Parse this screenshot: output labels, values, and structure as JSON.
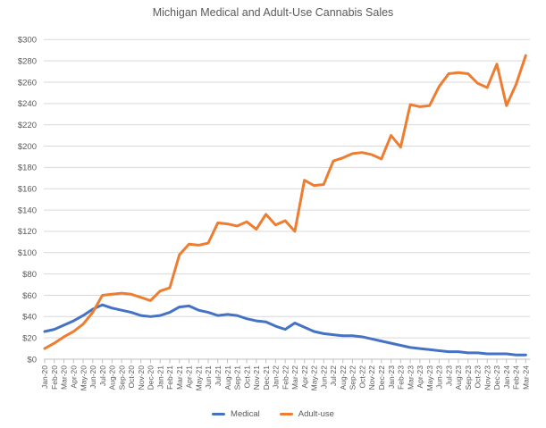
{
  "chart_data": {
    "type": "line",
    "title": "Michigan Medical and Adult-Use Cannabis Sales",
    "categories": [
      "Jan-20",
      "Feb-20",
      "Mar-20",
      "Apr-20",
      "May-20",
      "Jun-20",
      "Jul-20",
      "Aug-20",
      "Sep-20",
      "Oct-20",
      "Nov-20",
      "Dec-20",
      "Jan-21",
      "Feb-21",
      "Mar-21",
      "Apr-21",
      "May-21",
      "Jun-21",
      "Jul-21",
      "Aug-21",
      "Sep-21",
      "Oct-21",
      "Nov-21",
      "Dec-21",
      "Jan-22",
      "Feb-22",
      "Mar-22",
      "Apr-22",
      "May-22",
      "Jun-22",
      "Jul-22",
      "Aug-22",
      "Sep-22",
      "Oct-22",
      "Nov-22",
      "Dec-22",
      "Jan-23",
      "Feb-23",
      "Mar-23",
      "Apr-23",
      "May-23",
      "Jun-23",
      "Jul-23",
      "Aug-23",
      "Sep-23",
      "Oct-23",
      "Nov-23",
      "Dec-23",
      "Jan-24",
      "Feb-24",
      "Mar-24"
    ],
    "series": [
      {
        "name": "Medical",
        "color": "#4472C4",
        "values": [
          26,
          28,
          32,
          36,
          41,
          47,
          51,
          48,
          46,
          44,
          41,
          40,
          41,
          44,
          49,
          50,
          46,
          44,
          41,
          42,
          41,
          38,
          36,
          35,
          31,
          28,
          34,
          30,
          26,
          24,
          23,
          22,
          22,
          21,
          19,
          17,
          15,
          13,
          11,
          10,
          9,
          8,
          7,
          7,
          6,
          6,
          5,
          5,
          5,
          4,
          4
        ]
      },
      {
        "name": "Adult-use",
        "color": "#ED7D31",
        "values": [
          10,
          15,
          21,
          26,
          33,
          44,
          60,
          61,
          62,
          61,
          58,
          55,
          64,
          67,
          98,
          108,
          107,
          109,
          128,
          127,
          125,
          129,
          122,
          136,
          126,
          130,
          120,
          168,
          163,
          164,
          186,
          189,
          193,
          194,
          192,
          188,
          210,
          199,
          239,
          237,
          238,
          256,
          268,
          269,
          268,
          259,
          255,
          277,
          238,
          258,
          285
        ]
      }
    ],
    "ylim": [
      0,
      300
    ],
    "ytick_step": 20,
    "yticks": [
      "$0",
      "$20",
      "$40",
      "$60",
      "$80",
      "$100",
      "$120",
      "$140",
      "$160",
      "$180",
      "$200",
      "$220",
      "$240",
      "$260",
      "$280",
      "$300"
    ],
    "grid": true,
    "legend_position": "bottom",
    "axis_text_color": "#595959",
    "gridline_color": "#D9D9D9",
    "axis_line_color": "#BFBFBF"
  }
}
